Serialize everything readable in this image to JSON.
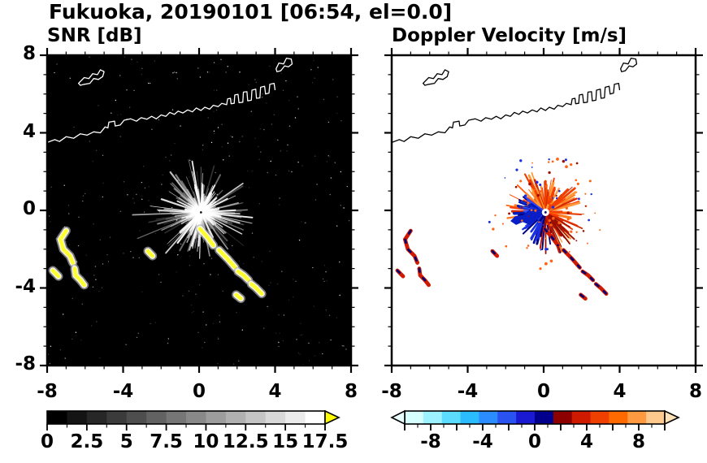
{
  "header": {
    "title": "Fukuoka, 20190101 [06:54, el=0.0]"
  },
  "panels": {
    "snr": {
      "title": "SNR [dB]"
    },
    "velocity": {
      "title": "Doppler Velocity [m/s]"
    }
  },
  "axes": {
    "range": [
      -8,
      8
    ],
    "tick_values": [
      -8,
      -4,
      0,
      4,
      8
    ],
    "tick_labels": [
      "-8",
      "-4",
      "0",
      "4",
      "8"
    ],
    "minor_step": 1
  },
  "colorbars": {
    "snr": {
      "min": 0,
      "max": 17.5,
      "tick_minor": 1.25,
      "tick_major": 2.5,
      "label_values": [
        0,
        2.5,
        5,
        7.5,
        10,
        12.5,
        15,
        17.5
      ],
      "labels": [
        "0",
        "2.5",
        "5",
        "7.5",
        "10",
        "12.5",
        "15",
        "17.5"
      ],
      "colors": [
        "#000000",
        "#141414",
        "#272727",
        "#3b3b3b",
        "#4e4e4e",
        "#626262",
        "#767676",
        "#898989",
        "#9d9d9d",
        "#b0b0b0",
        "#c4c4c4",
        "#d8d8d8",
        "#ebebeb",
        "#ffffff"
      ],
      "over_color": "#ffff00"
    },
    "velocity": {
      "min": -10,
      "max": 10,
      "tick_minor": 1,
      "tick_major": 2,
      "label_values": [
        -8,
        -4,
        0,
        4,
        8
      ],
      "labels": [
        "-8",
        "-4",
        "0",
        "4",
        "8"
      ],
      "colors": [
        "#d6ffff",
        "#9cf2ff",
        "#5cdcff",
        "#2bbcff",
        "#2a8cff",
        "#2a52f0",
        "#1a1ad2",
        "#00008c",
        "#8c0000",
        "#d01a00",
        "#f04000",
        "#ff6a00",
        "#ff9a40",
        "#ffc88c"
      ],
      "under_color": "#eaffff",
      "over_color": "#ffe2b8"
    }
  },
  "chart_data": {
    "type": "radar_ppi_pair",
    "site": "Fukuoka",
    "date": "20190101",
    "time": "06:54",
    "elevation_deg": 0.0,
    "x_range": [
      -8,
      8
    ],
    "y_range": [
      -8,
      8
    ],
    "radar_center": [
      0.1,
      -0.1
    ],
    "snr_clutter_color": "#ffff2e",
    "panels": [
      {
        "name": "SNR",
        "units": "dB",
        "scale_min": 0,
        "scale_max": 17.5,
        "background": "#000000",
        "map_outline": "#ffffff"
      },
      {
        "name": "Doppler Velocity",
        "units": "m/s",
        "scale_min": -10,
        "scale_max": 10,
        "background": "#ffffff",
        "map_outline": "#000000"
      }
    ],
    "velocity_colors": {
      "positive": [
        "#ff5a00",
        "#ff7a1e",
        "#f04000",
        "#d42a00",
        "#ff9a3c",
        "#ff3c00"
      ],
      "negative": [
        "#1a30e0",
        "#0018b4",
        "#3c64ff",
        "#000080",
        "#2846ff"
      ],
      "dark": [
        "#a01000",
        "#780000",
        "#c81800",
        "#000078"
      ]
    },
    "fan": {
      "radius_max": 3.4,
      "positive_sector_deg": [
        -70,
        190
      ],
      "negative_sector_deg": [
        140,
        255
      ]
    },
    "coastline": {
      "open": [
        [
          [
            -8,
            3.5
          ],
          [
            -7.6,
            3.65
          ],
          [
            -7.35,
            3.55
          ],
          [
            -7.0,
            3.8
          ],
          [
            -6.6,
            3.72
          ],
          [
            -6.25,
            3.95
          ],
          [
            -5.9,
            3.88
          ],
          [
            -5.55,
            4.05
          ],
          [
            -5.2,
            4.0
          ],
          [
            -4.95,
            4.3
          ],
          [
            -4.8,
            4.25
          ],
          [
            -4.75,
            4.55
          ],
          [
            -4.45,
            4.6
          ],
          [
            -4.42,
            4.35
          ],
          [
            -4.15,
            4.4
          ],
          [
            -3.95,
            4.65
          ],
          [
            -3.6,
            4.72
          ],
          [
            -3.3,
            4.6
          ],
          [
            -3.05,
            4.78
          ],
          [
            -2.75,
            4.7
          ],
          [
            -2.5,
            4.85
          ],
          [
            -2.25,
            4.72
          ],
          [
            -2.0,
            4.92
          ],
          [
            -1.75,
            4.85
          ],
          [
            -1.55,
            5.05
          ],
          [
            -1.3,
            4.95
          ],
          [
            -1.1,
            5.12
          ],
          [
            -0.85,
            5.02
          ],
          [
            -0.6,
            5.18
          ],
          [
            -0.35,
            5.08
          ],
          [
            -0.15,
            5.28
          ],
          [
            0.1,
            5.15
          ],
          [
            0.3,
            5.32
          ],
          [
            0.55,
            5.22
          ],
          [
            0.75,
            5.42
          ],
          [
            1.0,
            5.35
          ],
          [
            1.2,
            5.52
          ],
          [
            1.45,
            5.45
          ],
          [
            1.5,
            5.75
          ],
          [
            1.65,
            5.78
          ],
          [
            1.68,
            5.5
          ],
          [
            1.85,
            5.52
          ],
          [
            1.88,
            5.95
          ],
          [
            2.05,
            5.98
          ],
          [
            2.1,
            5.55
          ],
          [
            2.3,
            5.58
          ],
          [
            2.33,
            6.1
          ],
          [
            2.52,
            6.12
          ],
          [
            2.56,
            5.65
          ],
          [
            2.75,
            5.68
          ],
          [
            2.78,
            6.2
          ],
          [
            2.98,
            6.25
          ],
          [
            3.02,
            5.78
          ],
          [
            3.2,
            5.8
          ],
          [
            3.24,
            6.35
          ],
          [
            3.45,
            6.4
          ],
          [
            3.5,
            6.0
          ],
          [
            3.68,
            6.05
          ],
          [
            3.72,
            6.5
          ],
          [
            3.95,
            6.55
          ],
          [
            4.0,
            6.2
          ]
        ]
      ],
      "closed": [
        [
          [
            -6.35,
            6.55
          ],
          [
            -6.05,
            6.85
          ],
          [
            -5.8,
            6.8
          ],
          [
            -5.6,
            7.05
          ],
          [
            -5.35,
            7.0
          ],
          [
            -5.2,
            7.25
          ],
          [
            -5.0,
            7.15
          ],
          [
            -5.08,
            6.9
          ],
          [
            -5.3,
            6.75
          ],
          [
            -5.55,
            6.8
          ],
          [
            -5.75,
            6.55
          ],
          [
            -6.05,
            6.5
          ],
          [
            -6.25,
            6.45
          ]
        ],
        [
          [
            4.05,
            7.3
          ],
          [
            4.2,
            7.6
          ],
          [
            4.45,
            7.55
          ],
          [
            4.6,
            7.85
          ],
          [
            4.85,
            7.8
          ],
          [
            4.9,
            7.55
          ],
          [
            4.7,
            7.4
          ],
          [
            4.5,
            7.45
          ],
          [
            4.3,
            7.2
          ],
          [
            4.1,
            7.15
          ]
        ]
      ]
    },
    "features": {
      "arc_west1": [
        [
          -7.0,
          -1.05
        ],
        [
          -7.3,
          -1.5
        ],
        [
          -7.15,
          -2.0
        ],
        [
          -6.8,
          -2.35
        ],
        [
          -6.65,
          -2.7
        ]
      ],
      "arc_west2": [
        [
          -6.55,
          -3.0
        ],
        [
          -6.5,
          -3.35
        ],
        [
          -6.25,
          -3.6
        ],
        [
          -6.05,
          -3.85
        ]
      ],
      "dash_west": [
        [
          -7.7,
          -3.1
        ],
        [
          -7.4,
          -3.4
        ]
      ],
      "dash_mid": [
        [
          -2.7,
          -2.1
        ],
        [
          -2.45,
          -2.35
        ]
      ],
      "chain": [
        [
          [
            0.05,
            -0.95
          ],
          [
            0.45,
            -1.4
          ],
          [
            0.75,
            -1.8
          ]
        ],
        [
          [
            1.05,
            -2.05
          ],
          [
            1.5,
            -2.5
          ],
          [
            1.9,
            -2.95
          ]
        ],
        [
          [
            2.05,
            -3.15
          ],
          [
            2.35,
            -3.35
          ],
          [
            2.6,
            -3.6
          ]
        ],
        [
          [
            2.75,
            -3.8
          ],
          [
            3.0,
            -4.0
          ],
          [
            3.3,
            -4.3
          ]
        ],
        [
          [
            1.95,
            -4.35
          ],
          [
            2.2,
            -4.55
          ]
        ]
      ],
      "blue_blob": [
        [
          -0.1,
          -0.05
        ],
        [
          -0.45,
          0.1
        ],
        [
          -0.8,
          0.0
        ],
        [
          -1.1,
          -0.25
        ],
        [
          -1.5,
          -0.3
        ],
        [
          -1.75,
          -0.55
        ],
        [
          -1.45,
          -0.75
        ],
        [
          -1.1,
          -0.6
        ],
        [
          -0.75,
          -0.75
        ],
        [
          -0.45,
          -0.55
        ],
        [
          -0.15,
          -0.35
        ]
      ]
    }
  }
}
